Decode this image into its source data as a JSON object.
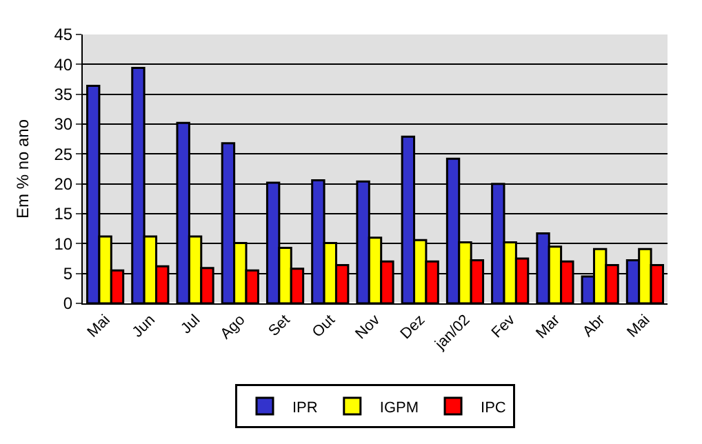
{
  "chart_data": {
    "type": "bar",
    "ylabel": "Em % no ano",
    "categories": [
      "Mai",
      "Jun",
      "Jul",
      "Ago",
      "Set",
      "Out",
      "Nov",
      "Dez",
      "jan/02",
      "Fev",
      "Mar",
      "Abr",
      "Mai"
    ],
    "series": [
      {
        "name": "IPR",
        "color": "#3333cc",
        "values": [
          36.4,
          39.4,
          30.2,
          26.8,
          20.2,
          20.6,
          20.4,
          27.9,
          24.2,
          20.0,
          11.7,
          4.5,
          7.2
        ]
      },
      {
        "name": "IGPM",
        "color": "#ffff00",
        "values": [
          11.2,
          11.2,
          11.2,
          10.1,
          9.3,
          10.1,
          11.0,
          10.6,
          10.2,
          10.2,
          9.5,
          9.1,
          9.1
        ]
      },
      {
        "name": "IPC",
        "color": "#ff0000",
        "values": [
          5.5,
          6.2,
          5.9,
          5.5,
          5.8,
          6.4,
          7.0,
          7.0,
          7.2,
          7.5,
          7.0,
          6.4,
          6.4
        ]
      }
    ],
    "ylim": [
      0,
      45
    ],
    "yticks": [
      0,
      5,
      10,
      15,
      20,
      25,
      30,
      35,
      40,
      45
    ],
    "grid": "y",
    "legend": "bottom"
  }
}
